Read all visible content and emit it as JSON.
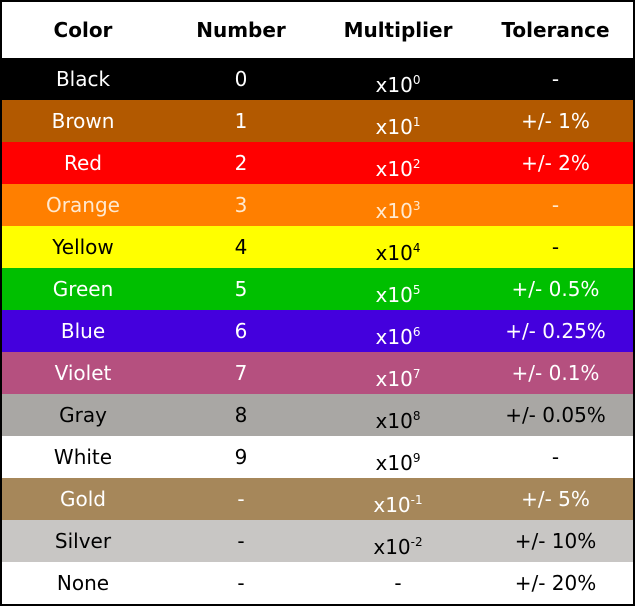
{
  "table": {
    "headers": [
      "Color",
      "Number",
      "Multiplier",
      "Tolerance"
    ],
    "rows": [
      {
        "color": "Black",
        "number": "0",
        "multiplier": {
          "base": "x10",
          "exp": "0"
        },
        "tolerance": "-",
        "background": "#000000",
        "text_color": "#ffffff"
      },
      {
        "color": "Brown",
        "number": "1",
        "multiplier": {
          "base": "x10",
          "exp": "1"
        },
        "tolerance": "+/- 1%",
        "background": "#b25900",
        "text_color": "#ffffff"
      },
      {
        "color": "Red",
        "number": "2",
        "multiplier": {
          "base": "x10",
          "exp": "2"
        },
        "tolerance": "+/- 2%",
        "background": "#ff0000",
        "text_color": "#ffffff"
      },
      {
        "color": "Orange",
        "number": "3",
        "multiplier": {
          "base": "x10",
          "exp": "3"
        },
        "tolerance": "-",
        "background": "#ff7f00",
        "text_color": "#ffe9d0"
      },
      {
        "color": "Yellow",
        "number": "4",
        "multiplier": {
          "base": "x10",
          "exp": "4"
        },
        "tolerance": "-",
        "background": "#ffff00",
        "text_color": "#000000"
      },
      {
        "color": "Green",
        "number": "5",
        "multiplier": {
          "base": "x10",
          "exp": "5"
        },
        "tolerance": "+/- 0.5%",
        "background": "#00bf00",
        "text_color": "#ffffff"
      },
      {
        "color": "Blue",
        "number": "6",
        "multiplier": {
          "base": "x10",
          "exp": "6"
        },
        "tolerance": "+/- 0.25%",
        "background": "#4400dd",
        "text_color": "#ffffff"
      },
      {
        "color": "Violet",
        "number": "7",
        "multiplier": {
          "base": "x10",
          "exp": "7"
        },
        "tolerance": "+/- 0.1%",
        "background": "#b5507f",
        "text_color": "#ffffff"
      },
      {
        "color": "Gray",
        "number": "8",
        "multiplier": {
          "base": "x10",
          "exp": "8"
        },
        "tolerance": "+/- 0.05%",
        "background": "#a9a7a4",
        "text_color": "#000000"
      },
      {
        "color": "White",
        "number": "9",
        "multiplier": {
          "base": "x10",
          "exp": "9"
        },
        "tolerance": "-",
        "background": "#ffffff",
        "text_color": "#000000"
      },
      {
        "color": "Gold",
        "number": "-",
        "multiplier": {
          "base": "x10",
          "exp": "-1"
        },
        "tolerance": "+/- 5%",
        "background": "#a6875a",
        "text_color": "#ffffff"
      },
      {
        "color": "Silver",
        "number": "-",
        "multiplier": {
          "base": "x10",
          "exp": "-2"
        },
        "tolerance": "+/- 10%",
        "background": "#c8c6c4",
        "text_color": "#000000"
      },
      {
        "color": "None",
        "number": "-",
        "multiplier": {
          "base": "-"
        },
        "tolerance": "+/- 20%",
        "background": "#ffffff",
        "text_color": "#000000"
      }
    ]
  }
}
